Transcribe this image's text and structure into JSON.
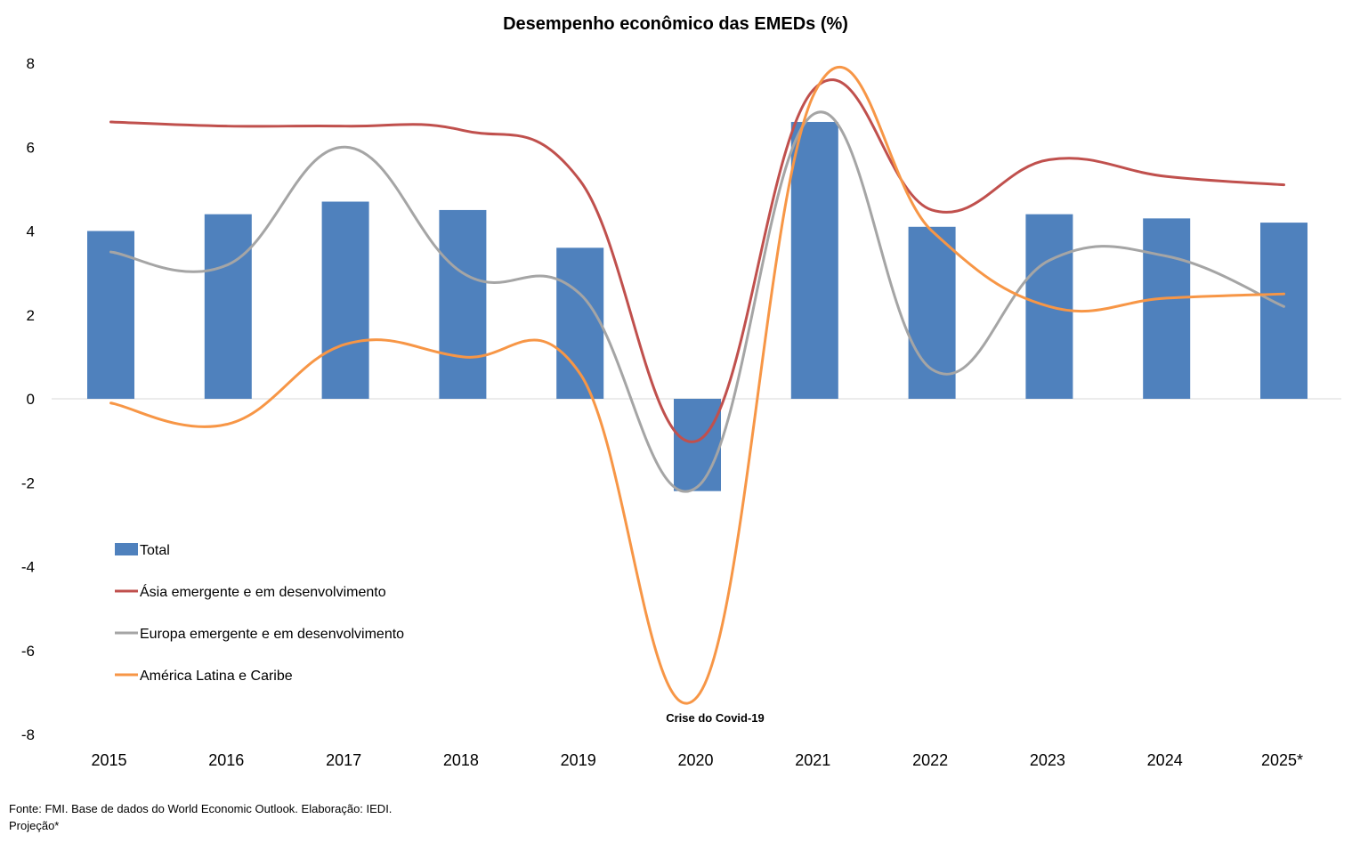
{
  "footer": {
    "source": "Fonte: FMI. Base de dados do World Economic Outlook. Elaboração: IEDI.",
    "note": "Projeção*"
  },
  "chart_data": {
    "type": "bar",
    "title": "Desempenho econômico das EMEDs (%)",
    "xlabel": "",
    "ylabel": "",
    "categories": [
      "2015",
      "2016",
      "2017",
      "2018",
      "2019",
      "2020",
      "2021",
      "2022",
      "2023",
      "2024",
      "2025*"
    ],
    "ylim": [
      -8,
      8
    ],
    "yticks": [
      8,
      6,
      4,
      2,
      0,
      -2,
      -4,
      -6,
      -8
    ],
    "grid": false,
    "legend_position": "bottom-left",
    "series": [
      {
        "name": "Total",
        "type": "bar",
        "color": "#4F81BD",
        "values": [
          4.0,
          4.4,
          4.7,
          4.5,
          3.6,
          -2.2,
          6.6,
          4.1,
          4.4,
          4.3,
          4.2
        ]
      },
      {
        "name": "Ásia emergente e em desenvolvimento",
        "type": "line",
        "color": "#C0504D",
        "values": [
          6.6,
          6.5,
          6.5,
          6.4,
          5.2,
          -1.0,
          7.4,
          4.5,
          5.7,
          5.3,
          5.1
        ]
      },
      {
        "name": "Europa emergente e em desenvolvimento",
        "type": "line",
        "color": "#A5A5A5",
        "values": [
          3.5,
          3.2,
          6.0,
          3.0,
          2.5,
          -2.1,
          6.8,
          0.7,
          3.3,
          3.4,
          2.2
        ]
      },
      {
        "name": "América Latina e Caribe",
        "type": "line",
        "color": "#F79646",
        "values": [
          -0.1,
          -0.6,
          1.3,
          1.0,
          0.6,
          -7.1,
          7.3,
          4.0,
          2.2,
          2.4,
          2.5
        ]
      }
    ],
    "annotations": [
      {
        "text": "Crise do Covid-19",
        "category": "2020"
      }
    ]
  }
}
